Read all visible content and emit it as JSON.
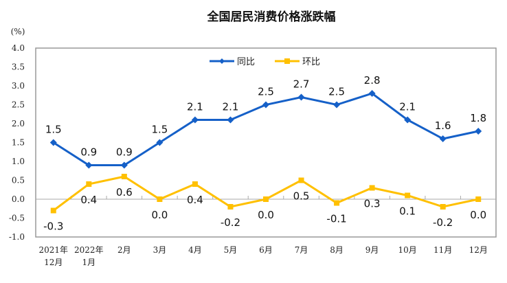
{
  "chart_data": {
    "type": "line",
    "title": "全国居民消费价格涨跌幅",
    "ylabel": "(%)",
    "ylim": [
      -1.0,
      4.0
    ],
    "yticks": [
      "4.0",
      "3.5",
      "3.0",
      "2.5",
      "2.0",
      "1.5",
      "1.0",
      "0.5",
      "0.0",
      "-0.5",
      "-1.0"
    ],
    "categories": [
      [
        "2021年",
        "12月"
      ],
      [
        "2022年",
        "1月"
      ],
      [
        "2月"
      ],
      [
        "3月"
      ],
      [
        "4月"
      ],
      [
        "5月"
      ],
      [
        "6月"
      ],
      [
        "7月"
      ],
      [
        "8月"
      ],
      [
        "9月"
      ],
      [
        "10月"
      ],
      [
        "11月"
      ],
      [
        "12月"
      ]
    ],
    "legend_position": "top-center",
    "grid": false,
    "series": [
      {
        "name": "同比",
        "color": "#1560C8",
        "marker": "diamond",
        "label_position": "above",
        "values": [
          1.5,
          0.9,
          0.9,
          1.5,
          2.1,
          2.1,
          2.5,
          2.7,
          2.5,
          2.8,
          2.1,
          1.6,
          1.8
        ]
      },
      {
        "name": "环比",
        "color": "#FFC000",
        "marker": "square",
        "label_position": "below",
        "values": [
          -0.3,
          0.4,
          0.6,
          0.0,
          0.4,
          -0.2,
          0.0,
          0.5,
          -0.1,
          0.3,
          0.1,
          -0.2,
          0.0
        ]
      }
    ]
  }
}
